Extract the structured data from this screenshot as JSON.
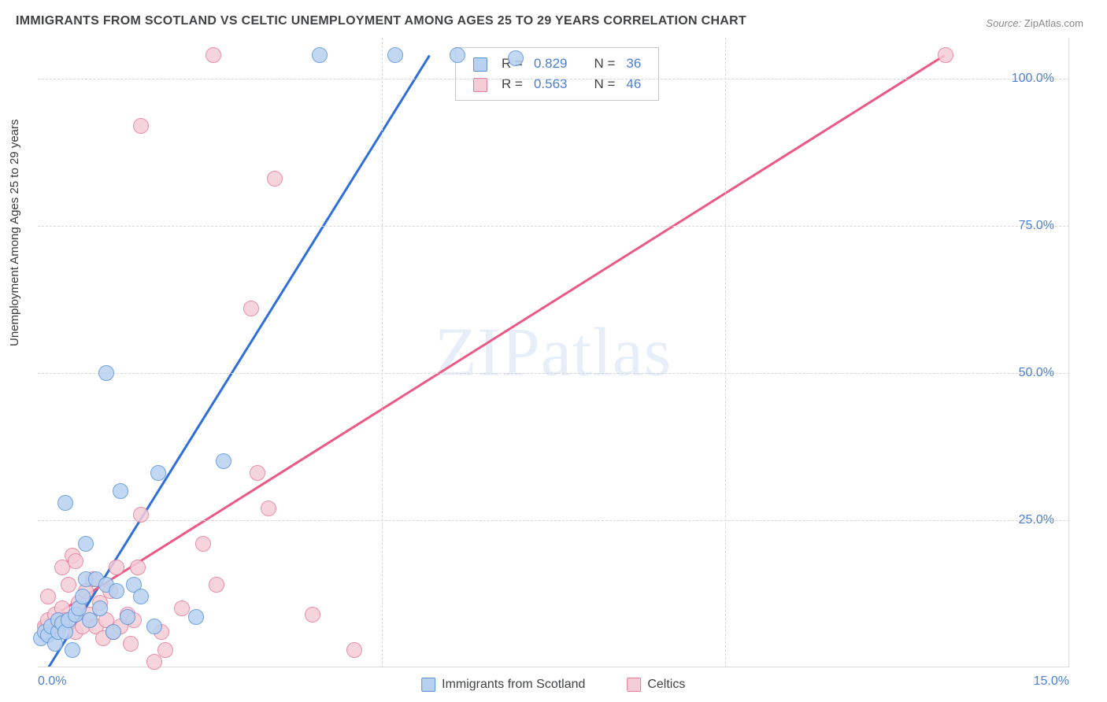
{
  "title": "IMMIGRANTS FROM SCOTLAND VS CELTIC UNEMPLOYMENT AMONG AGES 25 TO 29 YEARS CORRELATION CHART",
  "source_label": "Source:",
  "source_value": "ZipAtlas.com",
  "ylabel": "Unemployment Among Ages 25 to 29 years",
  "watermark": "ZIPatlas",
  "chart": {
    "type": "scatter",
    "xlim": [
      0,
      15
    ],
    "ylim": [
      0,
      107
    ],
    "xtick_step": 5,
    "ytick_step": 25,
    "xtick_labels": [
      "0.0%",
      "15.0%"
    ],
    "ytick_labels": [
      "25.0%",
      "50.0%",
      "75.0%",
      "100.0%"
    ],
    "grid_color": "#d7d7d7",
    "background_color": "#ffffff",
    "border_color": "#dcdcdc",
    "marker_radius": 10,
    "marker_border": 1.5,
    "series": [
      {
        "name": "Immigrants from Scotland",
        "legend_label": "Immigrants from Scotland",
        "fill": "#b8d1f0",
        "stroke": "#5a93d9",
        "line_color": "#2e6fd8",
        "line_width": 3,
        "R": "0.829",
        "N": "36",
        "regression": {
          "x1": 0,
          "y1": -3,
          "x2": 5.7,
          "y2": 104
        },
        "points": [
          [
            0.05,
            5
          ],
          [
            0.1,
            6
          ],
          [
            0.15,
            5.5
          ],
          [
            0.2,
            7
          ],
          [
            0.25,
            4
          ],
          [
            0.3,
            6
          ],
          [
            0.3,
            8
          ],
          [
            0.35,
            7.5
          ],
          [
            0.4,
            6
          ],
          [
            0.45,
            8
          ],
          [
            0.5,
            3
          ],
          [
            0.55,
            9
          ],
          [
            0.6,
            10
          ],
          [
            0.65,
            12
          ],
          [
            0.7,
            15
          ],
          [
            0.7,
            21
          ],
          [
            0.75,
            8
          ],
          [
            0.85,
            15
          ],
          [
            0.9,
            10
          ],
          [
            1.0,
            14
          ],
          [
            1.1,
            6
          ],
          [
            1.15,
            13
          ],
          [
            1.2,
            30
          ],
          [
            1.3,
            8.5
          ],
          [
            1.4,
            14
          ],
          [
            1.5,
            12
          ],
          [
            1.7,
            7
          ],
          [
            1.75,
            33
          ],
          [
            2.3,
            8.5
          ],
          [
            2.7,
            35
          ],
          [
            1.0,
            50
          ],
          [
            4.1,
            104
          ],
          [
            5.2,
            104
          ],
          [
            6.1,
            104
          ],
          [
            6.95,
            103.5
          ],
          [
            0.4,
            28
          ]
        ]
      },
      {
        "name": "Celtics",
        "legend_label": "Celtics",
        "fill": "#f5cdd7",
        "stroke": "#e77b9a",
        "line_color": "#ea5a85",
        "line_width": 3,
        "R": "0.563",
        "N": "46",
        "regression": {
          "x1": 0,
          "y1": 7,
          "x2": 13.2,
          "y2": 104
        },
        "points": [
          [
            0.1,
            7
          ],
          [
            0.15,
            8
          ],
          [
            0.2,
            6
          ],
          [
            0.25,
            9
          ],
          [
            0.3,
            7
          ],
          [
            0.35,
            10
          ],
          [
            0.35,
            17
          ],
          [
            0.4,
            8
          ],
          [
            0.45,
            14
          ],
          [
            0.5,
            19
          ],
          [
            0.55,
            6
          ],
          [
            0.6,
            11
          ],
          [
            0.65,
            7
          ],
          [
            0.7,
            13
          ],
          [
            0.75,
            9
          ],
          [
            0.8,
            15
          ],
          [
            0.85,
            7
          ],
          [
            0.9,
            11
          ],
          [
            0.95,
            5
          ],
          [
            1.0,
            8
          ],
          [
            1.05,
            13
          ],
          [
            1.1,
            6
          ],
          [
            1.15,
            17
          ],
          [
            1.2,
            7
          ],
          [
            1.3,
            9
          ],
          [
            1.35,
            4
          ],
          [
            1.4,
            8
          ],
          [
            1.45,
            17
          ],
          [
            1.5,
            26
          ],
          [
            1.7,
            1
          ],
          [
            1.8,
            6
          ],
          [
            1.85,
            3
          ],
          [
            2.1,
            10
          ],
          [
            2.4,
            21
          ],
          [
            2.6,
            14
          ],
          [
            3.2,
            33
          ],
          [
            3.35,
            27
          ],
          [
            4.0,
            9
          ],
          [
            4.6,
            3
          ],
          [
            2.55,
            104
          ],
          [
            1.5,
            92
          ],
          [
            3.1,
            61
          ],
          [
            3.45,
            83
          ],
          [
            13.2,
            104
          ],
          [
            0.15,
            12
          ],
          [
            0.55,
            18
          ]
        ]
      }
    ]
  },
  "stat_legend": {
    "r_label": "R =",
    "n_label": "N ="
  }
}
